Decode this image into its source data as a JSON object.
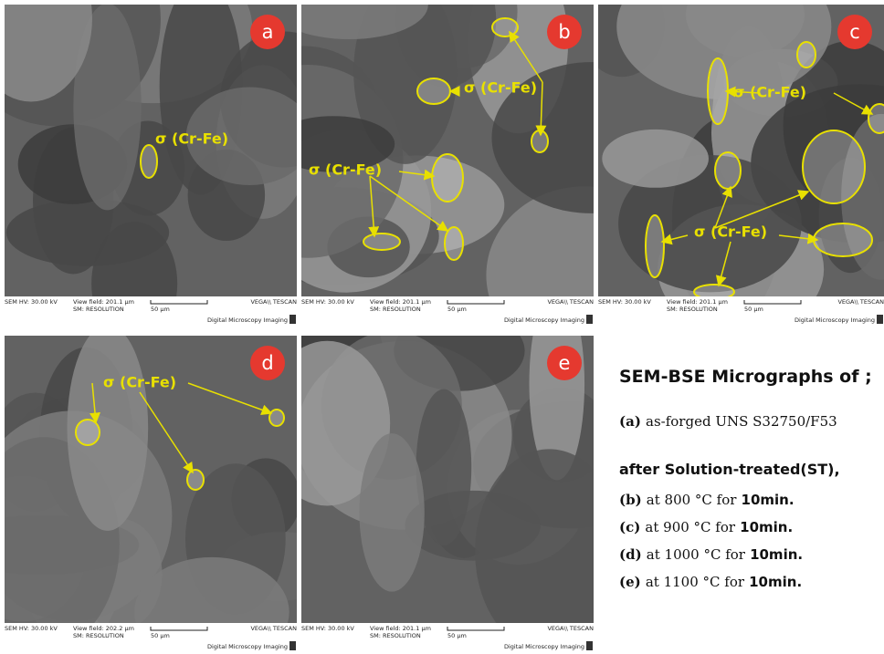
{
  "panels": [
    {
      "label": "a",
      "annotations": [
        "σ (Cr-Fe)"
      ],
      "footer": {
        "hv": "SEM HV: 30.00 kV",
        "view_field": "View field: 201.1 μm",
        "mode": "SM: RESOLUTION",
        "scale": "50 μm",
        "brand": "VEGA\\\\ TESCAN",
        "imaging": "Digital Microscopy Imaging"
      }
    },
    {
      "label": "b",
      "annotations": [
        "σ (Cr-Fe)",
        "σ (Cr-Fe)"
      ],
      "footer": {
        "hv": "SEM HV: 30.00 kV",
        "view_field": "View field: 201.1 μm",
        "mode": "SM: RESOLUTION",
        "scale": "50 μm",
        "brand": "VEGA\\\\ TESCAN",
        "imaging": "Digital Microscopy Imaging"
      }
    },
    {
      "label": "c",
      "annotations": [
        "σ (Cr-Fe)",
        "σ (Cr-Fe)"
      ],
      "footer": {
        "hv": "SEM HV: 30.00 kV",
        "view_field": "View field: 201.1 μm",
        "mode": "SM: RESOLUTION",
        "scale": "50 μm",
        "brand": "VEGA\\\\ TESCAN",
        "imaging": "Digital Microscopy Imaging"
      }
    },
    {
      "label": "d",
      "annotations": [
        "σ (Cr-Fe)"
      ],
      "footer": {
        "hv": "SEM HV: 30.00 kV",
        "view_field": "View field: 202.2 μm",
        "mode": "SM: RESOLUTION",
        "scale": "50 μm",
        "brand": "VEGA\\\\ TESCAN",
        "imaging": "Digital Microscopy Imaging"
      }
    },
    {
      "label": "e",
      "annotations": [],
      "footer": {
        "hv": "SEM HV: 30.00 kV",
        "view_field": "View field: 201.1 μm",
        "mode": "SM: RESOLUTION",
        "scale": "50 μm",
        "brand": "VEGA\\\\ TESCAN",
        "imaging": "Digital Microscopy Imaging"
      }
    }
  ],
  "caption": {
    "title": "SEM-BSE Micrographs of ;",
    "items": [
      {
        "letter": "(a)",
        "text": "as-forged UNS S32750/F53",
        "bold": ""
      },
      {
        "letter": "(b)",
        "text": "at 800 °C for",
        "bold": "10min."
      },
      {
        "letter": "(c)",
        "text": "at 900 °C for",
        "bold": "10min."
      },
      {
        "letter": "(d)",
        "text": "at 1000 °C for",
        "bold": "10min."
      },
      {
        "letter": "(e)",
        "text": "at 1100 °C for",
        "bold": "10min."
      }
    ],
    "subtitle": "after Solution-treated(ST),"
  }
}
